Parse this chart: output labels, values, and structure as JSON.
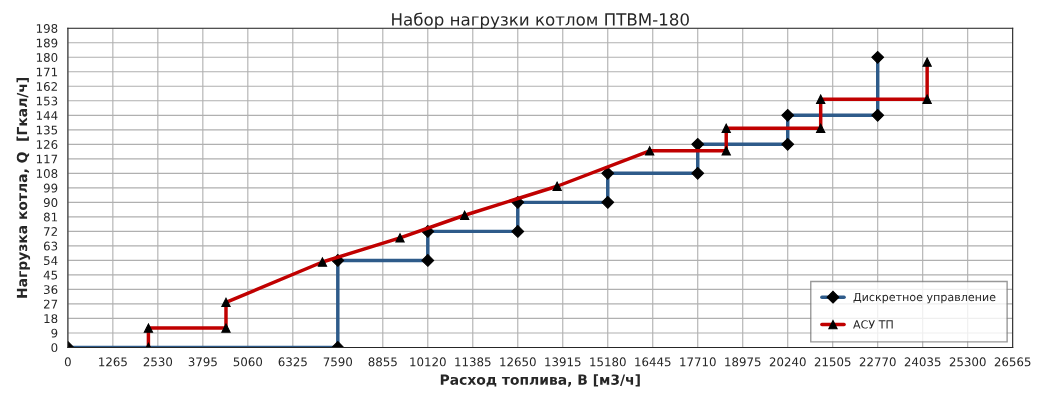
{
  "chart_data": {
    "type": "line",
    "title": "Набор нагрузки котлом ПТВМ-180",
    "xlabel": "Расход топлива, B [м3/ч]",
    "ylabel": "Нагрузка котла, Q  [Гкал/ч]",
    "xlim": [
      0,
      26565
    ],
    "xticks": [
      0,
      1265,
      2530,
      3795,
      5060,
      6325,
      7590,
      8855,
      10120,
      11385,
      12650,
      13915,
      15180,
      16445,
      17710,
      18975,
      20240,
      21505,
      22770,
      24035,
      25300,
      26565
    ],
    "ylim": [
      0,
      198
    ],
    "yticks": [
      0,
      9,
      18,
      27,
      36,
      45,
      54,
      63,
      72,
      81,
      90,
      99,
      108,
      117,
      126,
      135,
      144,
      153,
      162,
      171,
      180,
      189,
      198
    ],
    "grid": true,
    "legend": "bottom right",
    "line_style": "solid",
    "series": [
      {
        "name": "Дискретное управление",
        "color": "#2e5b8a",
        "marker": "diamond",
        "x": [
          0,
          7590,
          7590,
          10120,
          10120,
          12650,
          12650,
          15180,
          15180,
          17710,
          17710,
          20240,
          20240,
          22770,
          22770
        ],
        "values": [
          0,
          0,
          54,
          54,
          72,
          72,
          90,
          90,
          108,
          108,
          126,
          126,
          144,
          144,
          180
        ]
      },
      {
        "name": "АСУ ТП",
        "color": "#c00000",
        "marker": "triangle",
        "x": [
          2265,
          2265,
          4446,
          4446,
          7158,
          9339,
          11157,
          13757,
          16358,
          18511,
          18511,
          21167,
          21167,
          24160,
          24160
        ],
        "values": [
          0,
          12,
          12,
          28,
          53,
          68,
          82,
          100,
          122,
          122,
          136,
          136,
          154,
          154,
          177
        ]
      }
    ]
  }
}
